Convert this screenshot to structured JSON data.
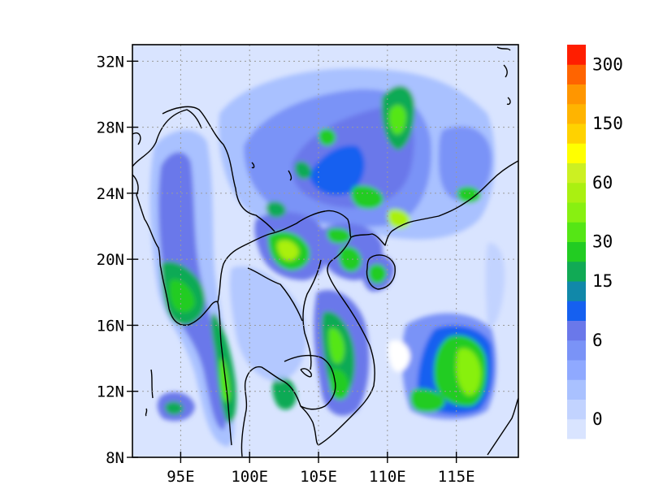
{
  "map": {
    "extent": {
      "lon": [
        91.5,
        119.5
      ],
      "lat": [
        8,
        33
      ]
    },
    "lat_ticks": [
      {
        "value": 8,
        "label": "8N"
      },
      {
        "value": 12,
        "label": "12N"
      },
      {
        "value": 16,
        "label": "16N"
      },
      {
        "value": 20,
        "label": "20N"
      },
      {
        "value": 24,
        "label": "24N"
      },
      {
        "value": 28,
        "label": "28N"
      },
      {
        "value": 32,
        "label": "32N"
      }
    ],
    "lon_ticks": [
      {
        "value": 95,
        "label": "95E"
      },
      {
        "value": 100,
        "label": "100E"
      },
      {
        "value": 105,
        "label": "105E"
      },
      {
        "value": 110,
        "label": "110E"
      },
      {
        "value": 115,
        "label": "115E"
      }
    ],
    "grid": "dotted",
    "background_color": "#d9e4ff"
  },
  "colorbar": {
    "colors": [
      "#d9e4ff",
      "#c2d3ff",
      "#a9c1ff",
      "#8fa9ff",
      "#7a93f7",
      "#6a78ea",
      "#1560f0",
      "#1188a9",
      "#11aa55",
      "#22cc22",
      "#55e615",
      "#88f011",
      "#aaf011",
      "#ccf022",
      "#ffff00",
      "#ffd200",
      "#ffb400",
      "#ff9600",
      "#ff6400",
      "#ff1e00"
    ],
    "labels": [
      {
        "index": 1,
        "text": "0"
      },
      {
        "index": 5,
        "text": "6"
      },
      {
        "index": 8,
        "text": "15"
      },
      {
        "index": 10,
        "text": "30"
      },
      {
        "index": 13,
        "text": "60"
      },
      {
        "index": 16,
        "text": "150"
      },
      {
        "index": 19,
        "text": "300"
      }
    ]
  }
}
